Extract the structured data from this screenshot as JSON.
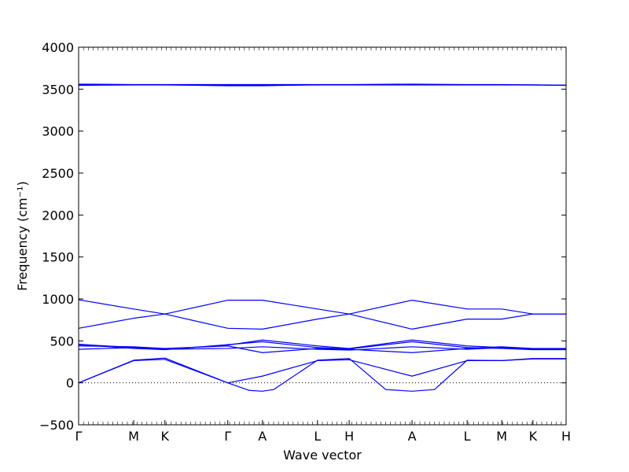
{
  "chart_data": {
    "type": "line",
    "xlabel": "Wave vector",
    "ylabel": "Frequency (cm⁻¹)",
    "ylim": [
      -500,
      4000
    ],
    "xlim": [
      0,
      1
    ],
    "yticks": [
      -500,
      0,
      500,
      1000,
      1500,
      2000,
      2500,
      3000,
      3500,
      4000
    ],
    "grid": false,
    "legend": "none",
    "line_color": "#0000ff",
    "zero_line_style": "dotted",
    "xticks": [
      {
        "label": "Γ",
        "x": 0.0
      },
      {
        "label": "M",
        "x": 0.113
      },
      {
        "label": "K",
        "x": 0.177
      },
      {
        "label": "Γ",
        "x": 0.306
      },
      {
        "label": "A",
        "x": 0.377
      },
      {
        "label": "L",
        "x": 0.49
      },
      {
        "label": "H",
        "x": 0.555
      },
      {
        "label": "A",
        "x": 0.684
      },
      {
        "label": "L",
        "x": 0.797
      },
      {
        "label": "M",
        "x": 0.868
      },
      {
        "label": "K",
        "x": 0.932
      },
      {
        "label": "H",
        "x": 1.0
      }
    ],
    "series": [
      {
        "x": [
          0,
          0.113,
          0.177,
          0.306,
          0.377,
          0.49,
          0.555,
          0.684,
          0.797,
          0.868,
          0.932,
          1.0
        ],
        "y": [
          0,
          265,
          280,
          0,
          80,
          265,
          275,
          80,
          265,
          265,
          285,
          285
        ]
      },
      {
        "x": [
          0,
          0.113,
          0.177,
          0.306,
          0.35,
          0.377,
          0.4,
          0.49,
          0.555,
          0.63,
          0.684,
          0.73,
          0.797,
          0.868,
          0.932,
          1.0
        ],
        "y": [
          0,
          270,
          295,
          0,
          -90,
          -100,
          -80,
          270,
          290,
          -80,
          -100,
          -80,
          270,
          265,
          290,
          290
        ]
      },
      {
        "x": [
          0,
          0.113,
          0.177,
          0.306,
          0.377,
          0.49,
          0.555,
          0.684,
          0.797,
          0.868,
          0.932,
          1.0
        ],
        "y": [
          400,
          420,
          400,
          410,
          430,
          400,
          390,
          430,
          400,
          420,
          400,
          400
        ]
      },
      {
        "x": [
          0,
          0.113,
          0.177,
          0.306,
          0.377,
          0.49,
          0.555,
          0.684,
          0.797,
          0.868,
          0.932,
          1.0
        ],
        "y": [
          440,
          430,
          410,
          440,
          360,
          410,
          400,
          360,
          410,
          430,
          410,
          410
        ]
      },
      {
        "x": [
          0,
          0.113,
          0.177,
          0.306,
          0.377,
          0.49,
          0.555,
          0.684,
          0.797,
          0.868,
          0.932,
          1.0
        ],
        "y": [
          460,
          420,
          400,
          450,
          510,
          440,
          410,
          510,
          440,
          420,
          400,
          400
        ]
      },
      {
        "x": [
          0,
          0.113,
          0.177,
          0.306,
          0.377,
          0.49,
          0.555,
          0.684,
          0.797,
          0.868,
          0.932,
          1.0
        ],
        "y": [
          455,
          410,
          395,
          455,
          490,
          420,
          405,
          490,
          420,
          410,
          395,
          395
        ]
      },
      {
        "x": [
          0,
          0.113,
          0.177,
          0.306,
          0.377,
          0.49,
          0.555,
          0.684,
          0.797,
          0.868,
          0.932,
          1.0
        ],
        "y": [
          650,
          770,
          820,
          650,
          640,
          760,
          820,
          640,
          760,
          760,
          820,
          820
        ]
      },
      {
        "x": [
          0,
          0.113,
          0.177,
          0.306,
          0.377,
          0.49,
          0.555,
          0.684,
          0.797,
          0.868,
          0.932,
          1.0
        ],
        "y": [
          990,
          880,
          820,
          985,
          985,
          880,
          820,
          985,
          880,
          880,
          820,
          820
        ]
      },
      {
        "x": [
          0,
          0.113,
          0.177,
          0.306,
          0.377,
          0.49,
          0.555,
          0.684,
          0.797,
          0.868,
          0.932,
          1.0
        ],
        "y": [
          3545,
          3550,
          3550,
          3545,
          3545,
          3550,
          3550,
          3550,
          3550,
          3550,
          3550,
          3545
        ]
      },
      {
        "x": [
          0,
          0.113,
          0.177,
          0.306,
          0.377,
          0.49,
          0.555,
          0.684,
          0.797,
          0.868,
          0.932,
          1.0
        ],
        "y": [
          3555,
          3552,
          3552,
          3540,
          3540,
          3552,
          3552,
          3555,
          3552,
          3552,
          3550,
          3545
        ]
      },
      {
        "x": [
          0,
          0.113,
          0.177,
          0.306,
          0.377,
          0.49,
          0.555,
          0.684,
          0.797,
          0.868,
          0.932,
          1.0
        ],
        "y": [
          3560,
          3555,
          3555,
          3555,
          3555,
          3555,
          3555,
          3560,
          3555,
          3555,
          3552,
          3548
        ]
      }
    ]
  }
}
